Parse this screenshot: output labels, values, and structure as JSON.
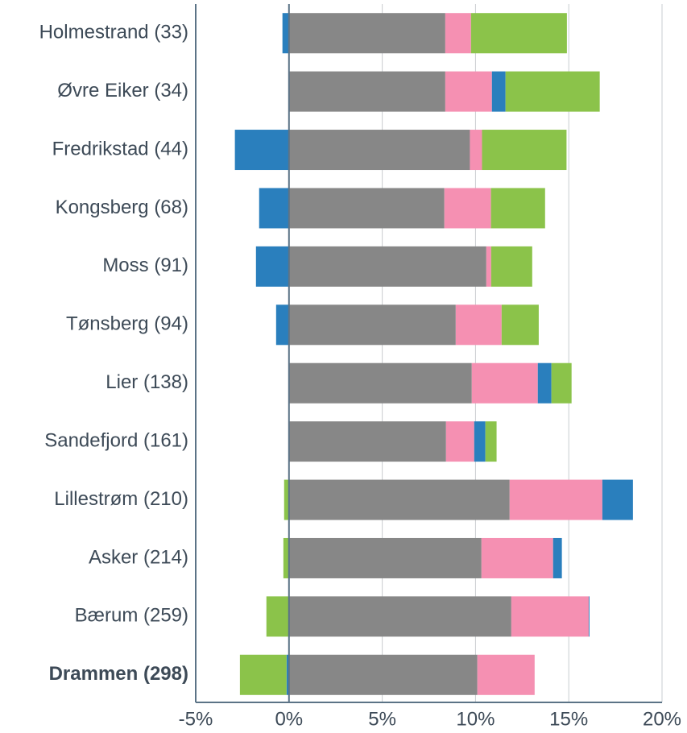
{
  "chart_data": {
    "type": "stacked-bar-horizontal",
    "categories": [
      "Holmestrand (33)",
      "Øvre Eiker (34)",
      "Fredrikstad (44)",
      "Kongsberg (68)",
      "Moss (91)",
      "Tønsberg (94)",
      "Lier (138)",
      "Sandefjord (161)",
      "Lillestrøm (210)",
      "Asker (214)",
      "Bærum (259)",
      "Drammen (298)"
    ],
    "highlight_index": 11,
    "series": [
      {
        "color": "#878787",
        "values": [
          8.38,
          8.38,
          9.7,
          8.33,
          10.58,
          8.94,
          9.8,
          8.42,
          11.83,
          10.32,
          11.92,
          10.1
        ]
      },
      {
        "color": "#f590b2",
        "values": [
          1.38,
          2.5,
          0.65,
          2.5,
          0.26,
          2.46,
          3.54,
          1.51,
          4.97,
          3.84,
          4.15,
          3.07
        ]
      },
      {
        "color": "#2a7fbd",
        "values": [
          -0.35,
          0.73,
          -2.9,
          -1.6,
          -1.77,
          -0.69,
          0.73,
          0.6,
          1.64,
          0.47,
          0.04,
          -0.13
        ]
      },
      {
        "color": "#8bc34a",
        "values": [
          5.14,
          5.05,
          4.53,
          2.9,
          2.2,
          1.99,
          1.08,
          0.6,
          -0.26,
          -0.3,
          -1.21,
          -2.5
        ]
      }
    ],
    "xlim": [
      -5,
      20
    ],
    "xticks": [
      {
        "value": -5,
        "label": "-5%"
      },
      {
        "value": 0,
        "label": "0%"
      },
      {
        "value": 5,
        "label": "5%"
      },
      {
        "value": 10,
        "label": "10%"
      },
      {
        "value": 15,
        "label": "15%"
      },
      {
        "value": 20,
        "label": "20%"
      }
    ],
    "grid": true
  }
}
